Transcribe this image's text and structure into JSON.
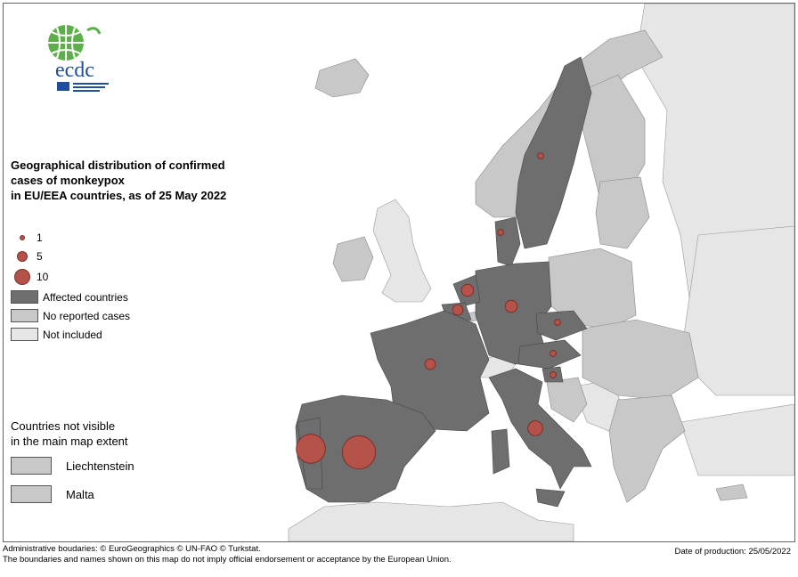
{
  "title_lines": [
    "Geographical distribution of confirmed",
    "cases of monkeypox",
    "in EU/EEA countries, as of 25 May 2022"
  ],
  "legend": {
    "size_1": "1",
    "size_5": "5",
    "size_10": "10",
    "affected": "Affected countries",
    "no_reported": "No reported cases",
    "not_included": "Not included"
  },
  "not_visible": {
    "title_line1": "Countries not visible",
    "title_line2": "in the main map extent",
    "items": [
      "Liechtenstein",
      "Malta"
    ]
  },
  "logo": {
    "text": "ecdc"
  },
  "footer": {
    "line1": "Administrative boudaries: © EuroGeographics © UN-FAO © Turkstat.",
    "line2": "The boundaries and names shown on this map do not imply official endorsement or acceptance by the European Union.",
    "production": "Date of production: 25/05/2022"
  },
  "colors": {
    "affected": "#6e6e6e",
    "no_reported": "#c8c8c8",
    "not_included": "#e6e6e6",
    "sea": "#ffffff",
    "case_dot": "#b5534a"
  },
  "cases": [
    {
      "country": "Spain",
      "value": 30
    },
    {
      "country": "Portugal",
      "value": 23
    },
    {
      "country": "United Kingdom",
      "value": 0
    },
    {
      "country": "Italy",
      "value": 6
    },
    {
      "country": "France",
      "value": 3
    },
    {
      "country": "Belgium",
      "value": 3
    },
    {
      "country": "Netherlands",
      "value": 4
    },
    {
      "country": "Germany",
      "value": 4
    },
    {
      "country": "Czechia",
      "value": 1
    },
    {
      "country": "Austria",
      "value": 1
    },
    {
      "country": "Slovenia",
      "value": 1
    },
    {
      "country": "Sweden",
      "value": 1
    },
    {
      "country": "Denmark",
      "value": 1
    }
  ]
}
